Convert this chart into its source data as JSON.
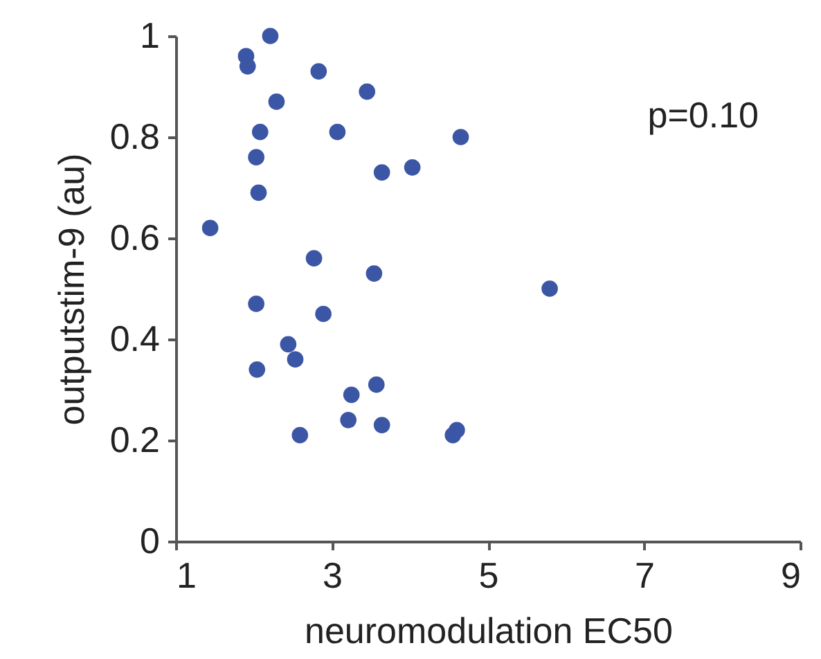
{
  "chart_data": {
    "type": "scatter",
    "xlabel": "neuromodulation EC50",
    "ylabel": "outputstim-9 (au)",
    "annotations": [
      "p=0.10"
    ],
    "xlim": [
      1,
      9
    ],
    "xticks": [
      1,
      3,
      5,
      7,
      9
    ],
    "ylim": [
      0,
      1
    ],
    "yticks": [
      0,
      0.2,
      0.4,
      0.6,
      0.8,
      1
    ],
    "grid": false,
    "marker": "circle",
    "series": [
      {
        "color": "#3a56a5",
        "x": [
          2.21,
          1.9,
          1.92,
          2.83,
          3.45,
          2.29,
          2.08,
          3.07,
          4.65,
          2.03,
          3.64,
          4.03,
          2.06,
          1.44,
          2.77,
          3.54,
          5.79,
          2.03,
          2.89,
          2.44,
          2.53,
          2.04,
          3.57,
          3.25,
          3.21,
          3.64,
          4.6,
          4.55,
          2.59
        ],
        "values": [
          1.0,
          0.96,
          0.94,
          0.93,
          0.89,
          0.87,
          0.81,
          0.81,
          0.8,
          0.76,
          0.73,
          0.74,
          0.69,
          0.62,
          0.56,
          0.53,
          0.5,
          0.47,
          0.45,
          0.39,
          0.36,
          0.34,
          0.31,
          0.29,
          0.24,
          0.23,
          0.22,
          0.21,
          0.21
        ]
      }
    ]
  }
}
